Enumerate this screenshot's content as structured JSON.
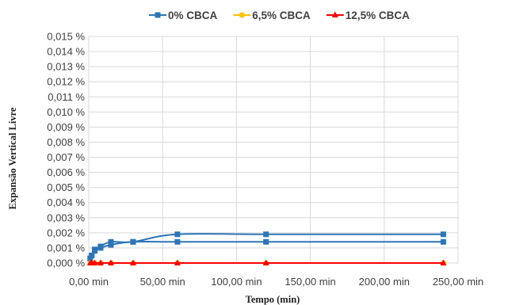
{
  "chart_data": {
    "type": "scatter",
    "title": "",
    "xlabel": "Tempo (min)",
    "ylabel": "Expansão Vertical Livre",
    "xlim": [
      0,
      250
    ],
    "ylim": [
      0,
      0.015
    ],
    "grid": true,
    "legend_position": "top",
    "x_ticks": [
      {
        "value": 0,
        "label": "0,00 min"
      },
      {
        "value": 50,
        "label": "50,00 min"
      },
      {
        "value": 100,
        "label": "100,00 min"
      },
      {
        "value": 150,
        "label": "150,00 min"
      },
      {
        "value": 200,
        "label": "200,00 min"
      },
      {
        "value": 250,
        "label": "250,00 min"
      }
    ],
    "y_ticks": [
      {
        "value": 0.0,
        "label": "0,000 %"
      },
      {
        "value": 0.001,
        "label": "0,001 %"
      },
      {
        "value": 0.002,
        "label": "0,002 %"
      },
      {
        "value": 0.003,
        "label": "0,003 %"
      },
      {
        "value": 0.004,
        "label": "0,004 %"
      },
      {
        "value": 0.005,
        "label": "0,005 %"
      },
      {
        "value": 0.006,
        "label": "0,006 %"
      },
      {
        "value": 0.007,
        "label": "0,007 %"
      },
      {
        "value": 0.008,
        "label": "0,008 %"
      },
      {
        "value": 0.009,
        "label": "0,009 %"
      },
      {
        "value": 0.01,
        "label": "0,010 %"
      },
      {
        "value": 0.011,
        "label": "0,011 %"
      },
      {
        "value": 0.012,
        "label": "0,012 %"
      },
      {
        "value": 0.013,
        "label": "0,013 %"
      },
      {
        "value": 0.014,
        "label": "0,014 %"
      },
      {
        "value": 0.015,
        "label": "0,015 %"
      }
    ],
    "series": [
      {
        "name": "0% CBCA",
        "color": "#2e75b6",
        "marker": "square",
        "curves": [
          {
            "x": [
              1,
              2,
              4,
              8,
              15,
              30,
              60,
              120,
              240
            ],
            "y": [
              0.0003,
              0.0005,
              0.0009,
              0.0011,
              0.0014,
              0.0014,
              0.0019,
              0.0019,
              0.0019
            ]
          },
          {
            "x": [
              1,
              2,
              4,
              8,
              15,
              30,
              60,
              120,
              240
            ],
            "y": [
              0.0003,
              0.0005,
              0.0008,
              0.001,
              0.0012,
              0.0014,
              0.0014,
              0.0014,
              0.0014
            ]
          }
        ]
      },
      {
        "name": "6,5% CBCA",
        "color": "#ffc000",
        "marker": "circle",
        "curves": [
          {
            "x": [
              1,
              2,
              4,
              8,
              15,
              30,
              60,
              120,
              240
            ],
            "y": [
              0,
              0,
              0,
              0,
              0,
              0,
              0,
              0,
              0
            ]
          }
        ]
      },
      {
        "name": "12,5% CBCA",
        "color": "#ff0000",
        "marker": "triangle",
        "curves": [
          {
            "x": [
              1,
              2,
              4,
              8,
              15,
              30,
              60,
              120,
              240
            ],
            "y": [
              0,
              0,
              0,
              0,
              0,
              0,
              0,
              0,
              0
            ]
          }
        ]
      }
    ]
  }
}
